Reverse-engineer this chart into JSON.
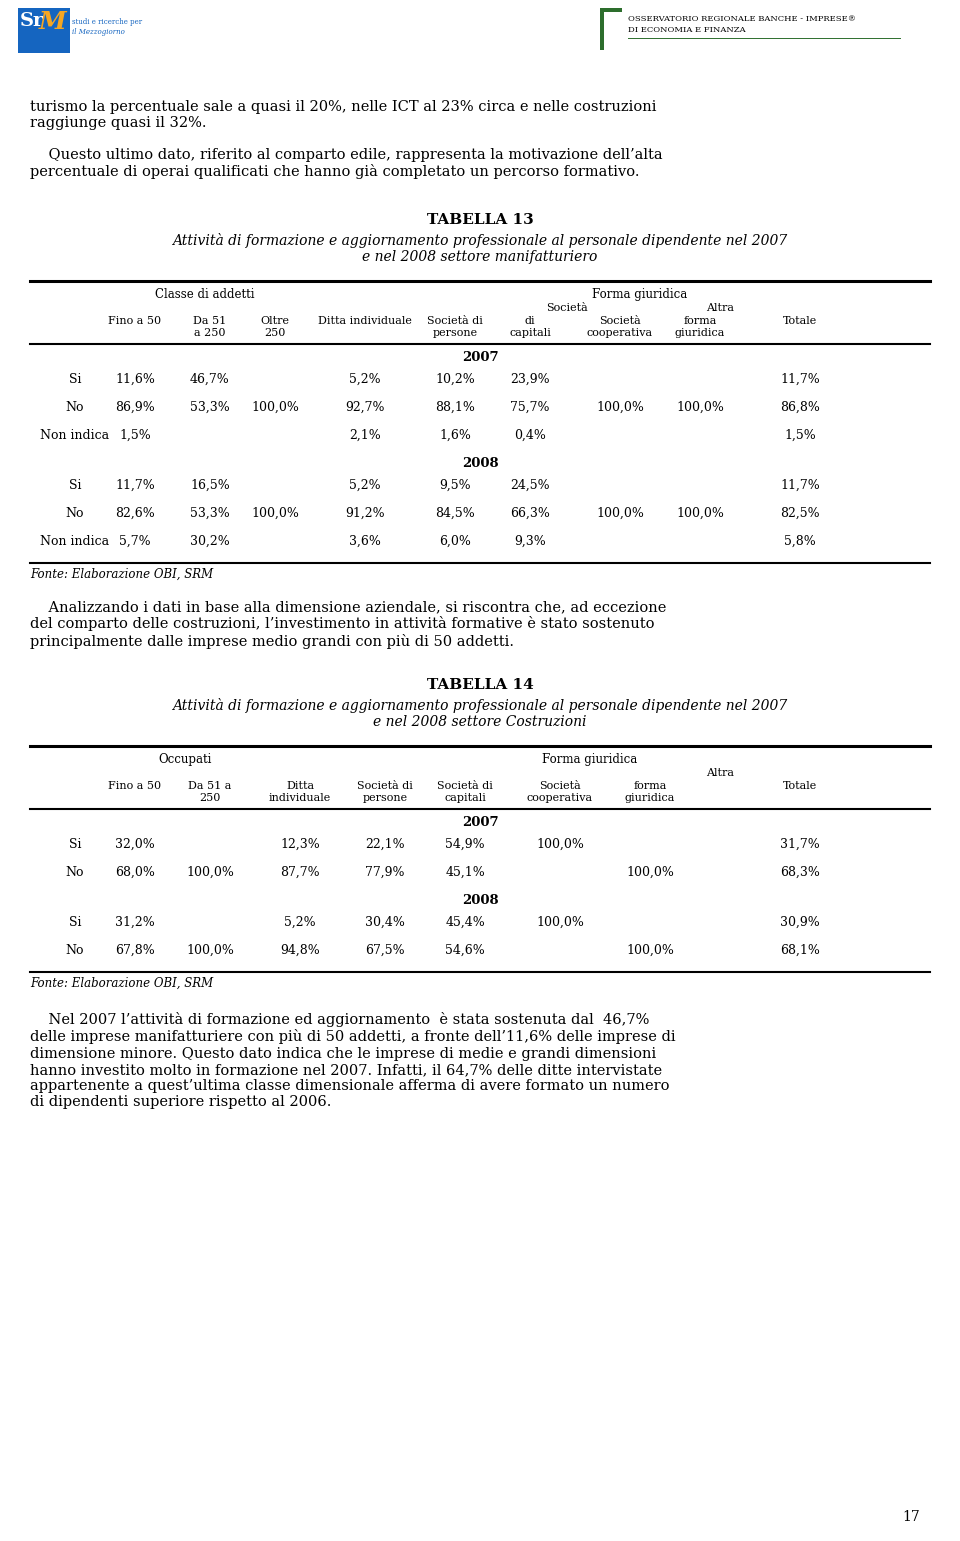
{
  "page_bg": "#ffffff",
  "intro_text1": "turismo la percentuale sale a quasi il 20%, nelle ICT al 23% circa e nelle costruzioni\nraggiunge quasi il 32%.",
  "intro_text2": "    Questo ultimo dato, riferito al comparto edile, rappresenta la motivazione dell’alta\npercentuale di operai qualificati che hanno già completato un percorso formativo.",
  "table13_title": "TABELLA 13",
  "table13_subtitle": "Attività di formazione e aggiornamento professionale al personale dipendente nel 2007\ne nel 2008 settore manifatturiero",
  "table13_header1a": "Classe di addetti",
  "table13_header1b": "Forma giuridica",
  "table13_2007_rows": [
    [
      "Si",
      "11,6%",
      "46,7%",
      "",
      "5,2%",
      "10,2%",
      "23,9%",
      "",
      "",
      "11,7%"
    ],
    [
      "No",
      "86,9%",
      "53,3%",
      "100,0%",
      "92,7%",
      "88,1%",
      "75,7%",
      "100,0%",
      "100,0%",
      "86,8%"
    ],
    [
      "Non indica",
      "1,5%",
      "",
      "",
      "2,1%",
      "1,6%",
      "0,4%",
      "",
      "",
      "1,5%"
    ]
  ],
  "table13_2008_rows": [
    [
      "Si",
      "11,7%",
      "16,5%",
      "",
      "5,2%",
      "9,5%",
      "24,5%",
      "",
      "",
      "11,7%"
    ],
    [
      "No",
      "82,6%",
      "53,3%",
      "100,0%",
      "91,2%",
      "84,5%",
      "66,3%",
      "100,0%",
      "100,0%",
      "82,5%"
    ],
    [
      "Non indica",
      "5,7%",
      "30,2%",
      "",
      "3,6%",
      "6,0%",
      "9,3%",
      "",
      "",
      "5,8%"
    ]
  ],
  "table13_fonte": "Fonte: Elaborazione OBI, SRM",
  "middle_text": "    Analizzando i dati in base alla dimensione aziendale, si riscontra che, ad eccezione\ndel comparto delle costruzioni, l’investimento in attività formative è stato sostenuto\nprincipalmente dalle imprese medio grandi con più di 50 addetti.",
  "table14_title": "TABELLA 14",
  "table14_subtitle": "Attività di formazione e aggiornamento professionale al personale dipendente nel 2007\ne nel 2008 settore Costruzioni",
  "table14_header1a": "Occupati",
  "table14_header1b": "Forma giuridica",
  "table14_2007_rows": [
    [
      "Si",
      "32,0%",
      "",
      "12,3%",
      "22,1%",
      "54,9%",
      "100,0%",
      "",
      "31,7%"
    ],
    [
      "No",
      "68,0%",
      "100,0%",
      "87,7%",
      "77,9%",
      "45,1%",
      "",
      "100,0%",
      "68,3%"
    ]
  ],
  "table14_2008_rows": [
    [
      "Si",
      "31,2%",
      "",
      "5,2%",
      "30,4%",
      "45,4%",
      "100,0%",
      "",
      "30,9%"
    ],
    [
      "No",
      "67,8%",
      "100,0%",
      "94,8%",
      "67,5%",
      "54,6%",
      "",
      "100,0%",
      "68,1%"
    ]
  ],
  "table14_fonte": "Fonte: Elaborazione OBI, SRM",
  "bottom_text": "    Nel 2007 l’attività di formazione ed aggiornamento  è stata sostenuta dal  46,7%\ndelle imprese manifatturiere con più di 50 addetti, a fronte dell’11,6% delle imprese di\ndimensione minore. Questo dato indica che le imprese di medie e grandi dimensioni\nhanno investito molto in formazione nel 2007. Infatti, il 64,7% delle ditte intervistate\nappartenente a quest’ultima classe dimensionale afferma di avere formato un numero\ndi dipendenti superiore rispetto al 2006.",
  "page_number": "17"
}
